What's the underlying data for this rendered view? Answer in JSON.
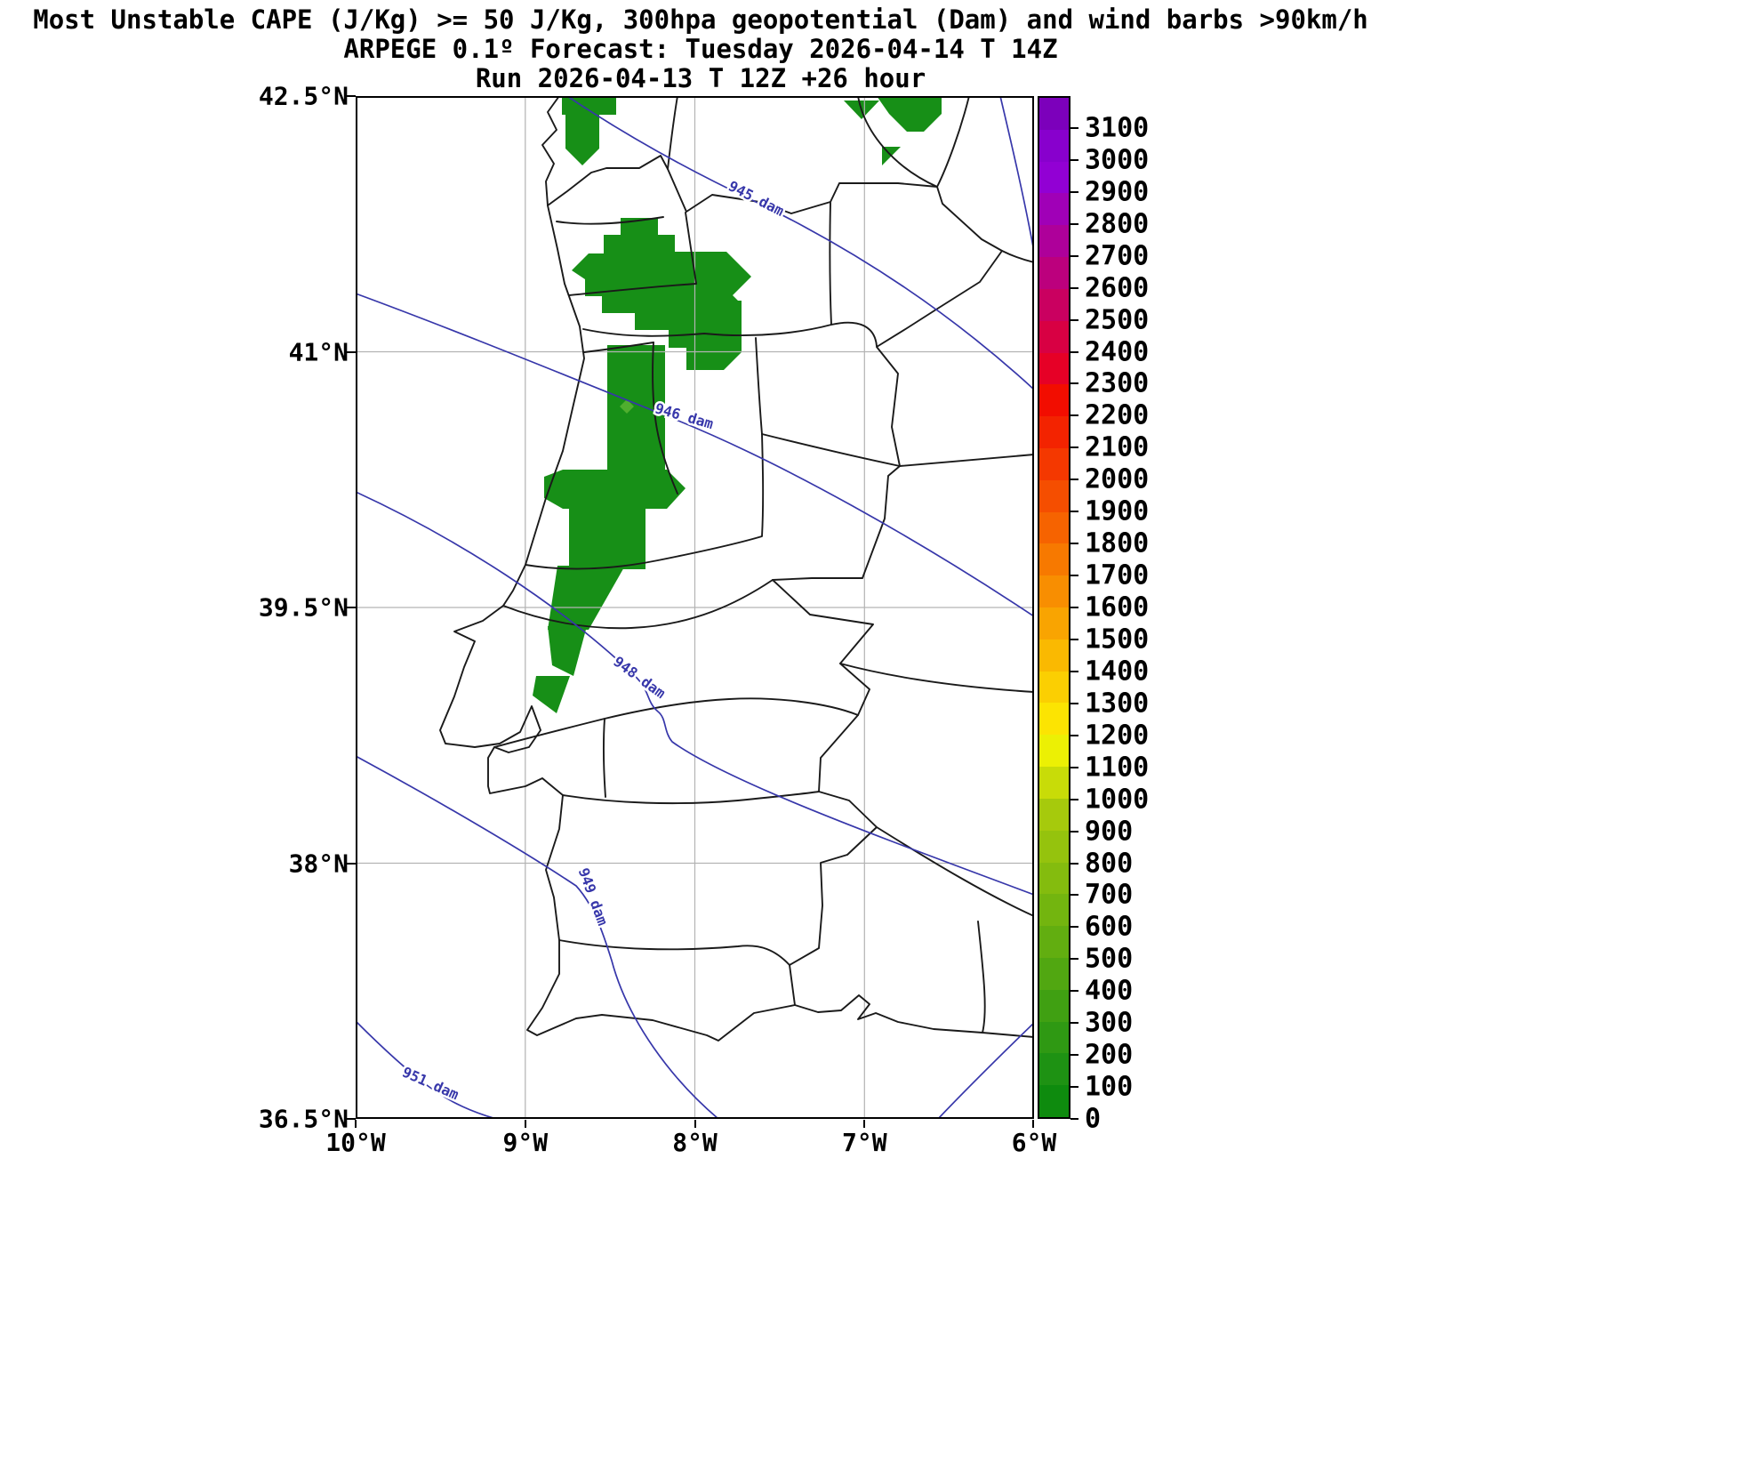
{
  "figure": {
    "background": "#ffffff"
  },
  "chart_data": {
    "type": "heatmap",
    "title": "Most Unstable CAPE (J/Kg) >= 50 J/Kg, 300hpa geopotential (Dam) and wind barbs >90km/h",
    "subtitle": "ARPEGE 0.1º Forecast: Tuesday 2026-04-14 T 14Z",
    "run_line": "Run 2026-04-13 T 12Z +26 hour",
    "x_axis": {
      "tick_labels": [
        "10°W",
        "9°W",
        "8°W",
        "7°W",
        "6°W"
      ],
      "min_deg": -10,
      "max_deg": -6
    },
    "y_axis": {
      "tick_labels": [
        "42.5°N",
        "41°N",
        "39.5°N",
        "38°N",
        "36.5°N"
      ],
      "min_deg": 36.5,
      "max_deg": 42.5
    },
    "grid": true,
    "legend_position": "right",
    "cape_threshold_jkg": 50,
    "geopotential_contours_dam": [
      945,
      946,
      948,
      949,
      951
    ],
    "contour_labels": [
      "945 dam",
      "946 dam",
      "948 dam",
      "949 dam",
      "951 dam"
    ],
    "cape_fill_color": "#178f17",
    "cape_light_cell_color": "#4fae2e",
    "colors": {
      "frame": "#000000",
      "boundary": "#1a1a1a",
      "grid": "#b3b3b3",
      "contour": "#3737aa"
    },
    "colorbar": {
      "tick_labels_top_to_bottom": [
        "3100",
        "3000",
        "2900",
        "2800",
        "2700",
        "2600",
        "2500",
        "2400",
        "2300",
        "2200",
        "2100",
        "2000",
        "1900",
        "1800",
        "1700",
        "1600",
        "1500",
        "1400",
        "1300",
        "1200",
        "1100",
        "1000",
        "900",
        "800",
        "700",
        "600",
        "500",
        "400",
        "300",
        "200",
        "100",
        "0"
      ],
      "segment_colors_bottom_to_top": [
        "#0e8b0e",
        "#1e9213",
        "#2f9913",
        "#40a012",
        "#51a711",
        "#62ae10",
        "#73b50f",
        "#84bc0e",
        "#95c30d",
        "#a6ca0c",
        "#c8dc08",
        "#ecf004",
        "#fce402",
        "#fbcf02",
        "#fab901",
        "#f9a401",
        "#f88e01",
        "#f77900",
        "#f66300",
        "#f54e00",
        "#f43800",
        "#f32300",
        "#f20d00",
        "#e60026",
        "#d80043",
        "#ca0060",
        "#bc007d",
        "#ae009a",
        "#a000b7",
        "#9200d4",
        "#8800cd",
        "#7c00bb"
      ]
    }
  }
}
